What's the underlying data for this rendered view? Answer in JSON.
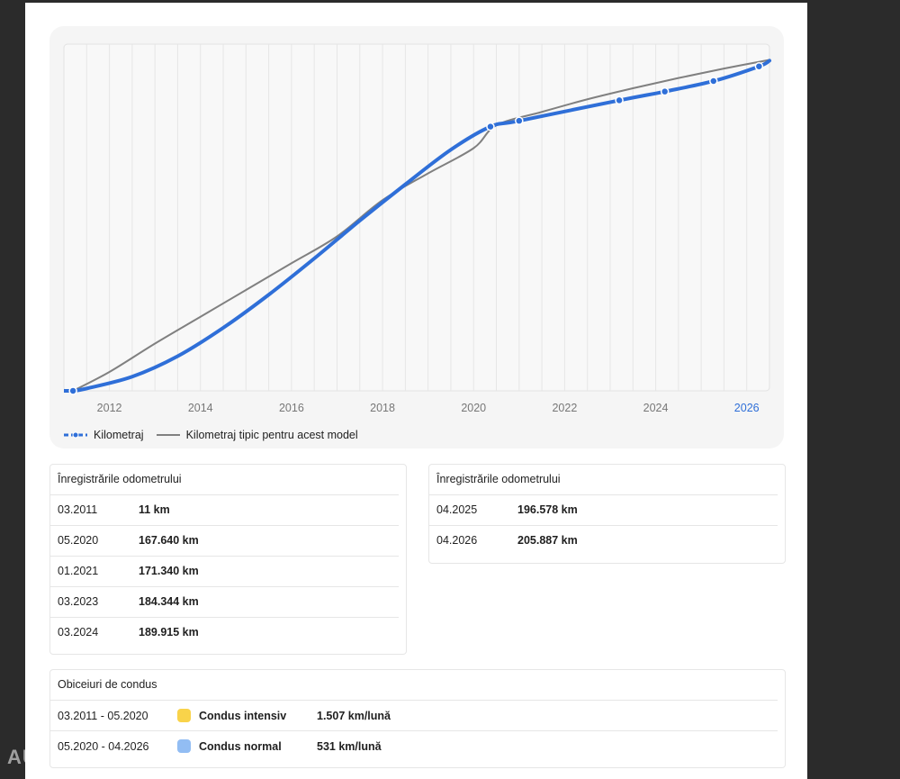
{
  "chart_data": {
    "type": "line",
    "x_ticks": [
      "2012",
      "2014",
      "2016",
      "2018",
      "2020",
      "2022",
      "2024",
      "2026"
    ],
    "highlight_tick": "2026",
    "xlim": [
      2011.0,
      2026.5
    ],
    "ylim": [
      0,
      220000
    ],
    "grid": true,
    "legend_position": "bottom-left",
    "series": [
      {
        "name": "Kilometraj",
        "color": "#2f6fd8",
        "points": [
          {
            "x": 2011.2,
            "y": 11
          },
          {
            "x": 2011.5,
            "y": 1500
          },
          {
            "x": 2012.5,
            "y": 9000
          },
          {
            "x": 2013.5,
            "y": 22000
          },
          {
            "x": 2014.5,
            "y": 40000
          },
          {
            "x": 2015.5,
            "y": 61000
          },
          {
            "x": 2016.5,
            "y": 84000
          },
          {
            "x": 2017.5,
            "y": 108000
          },
          {
            "x": 2018.5,
            "y": 131000
          },
          {
            "x": 2019.5,
            "y": 153000
          },
          {
            "x": 2020.37,
            "y": 167640
          },
          {
            "x": 2021.0,
            "y": 171340
          },
          {
            "x": 2023.2,
            "y": 184344
          },
          {
            "x": 2024.2,
            "y": 189915
          },
          {
            "x": 2025.27,
            "y": 196578
          },
          {
            "x": 2026.27,
            "y": 205887
          },
          {
            "x": 2026.5,
            "y": 209500
          }
        ],
        "markers": [
          {
            "x": 2011.2,
            "y": 11
          },
          {
            "x": 2020.37,
            "y": 167640
          },
          {
            "x": 2021.0,
            "y": 171340
          },
          {
            "x": 2023.2,
            "y": 184344
          },
          {
            "x": 2024.2,
            "y": 189915
          },
          {
            "x": 2025.27,
            "y": 196578
          },
          {
            "x": 2026.27,
            "y": 205887
          }
        ]
      },
      {
        "name": "Kilometraj tipic pentru acest model",
        "color": "#808080",
        "points": [
          {
            "x": 2011.2,
            "y": 0
          },
          {
            "x": 2012.0,
            "y": 12000
          },
          {
            "x": 2013.0,
            "y": 30000
          },
          {
            "x": 2014.0,
            "y": 47000
          },
          {
            "x": 2015.0,
            "y": 64000
          },
          {
            "x": 2016.0,
            "y": 81000
          },
          {
            "x": 2017.0,
            "y": 98000
          },
          {
            "x": 2018.0,
            "y": 121000
          },
          {
            "x": 2019.0,
            "y": 138000
          },
          {
            "x": 2020.0,
            "y": 154000
          },
          {
            "x": 2020.5,
            "y": 168500
          },
          {
            "x": 2021.5,
            "y": 177000
          },
          {
            "x": 2022.5,
            "y": 185000
          },
          {
            "x": 2023.5,
            "y": 192000
          },
          {
            "x": 2024.5,
            "y": 198500
          },
          {
            "x": 2025.5,
            "y": 204500
          },
          {
            "x": 2026.5,
            "y": 210000
          }
        ]
      }
    ]
  },
  "odometer_left": {
    "title": "Înregistrările odometrului",
    "rows": [
      {
        "date": "03.2011",
        "value": "11 km"
      },
      {
        "date": "05.2020",
        "value": "167.640 km"
      },
      {
        "date": "01.2021",
        "value": "171.340 km"
      },
      {
        "date": "03.2023",
        "value": "184.344 km"
      },
      {
        "date": "03.2024",
        "value": "189.915 km"
      }
    ]
  },
  "odometer_right": {
    "title": "Înregistrările odometrului",
    "rows": [
      {
        "date": "04.2025",
        "value": "196.578 km"
      },
      {
        "date": "04.2026",
        "value": "205.887 km"
      }
    ]
  },
  "habits": {
    "title": "Obiceiuri de condus",
    "rows": [
      {
        "period": "03.2011 - 05.2020",
        "color": "#f9d34a",
        "label": "Condus intensiv",
        "rate": "1.507 km/lună"
      },
      {
        "period": "05.2020 - 04.2026",
        "color": "#92bdf3",
        "label": "Condus normal",
        "rate": "531 km/lună"
      }
    ]
  },
  "watermark": "AUTOVIT.RO"
}
